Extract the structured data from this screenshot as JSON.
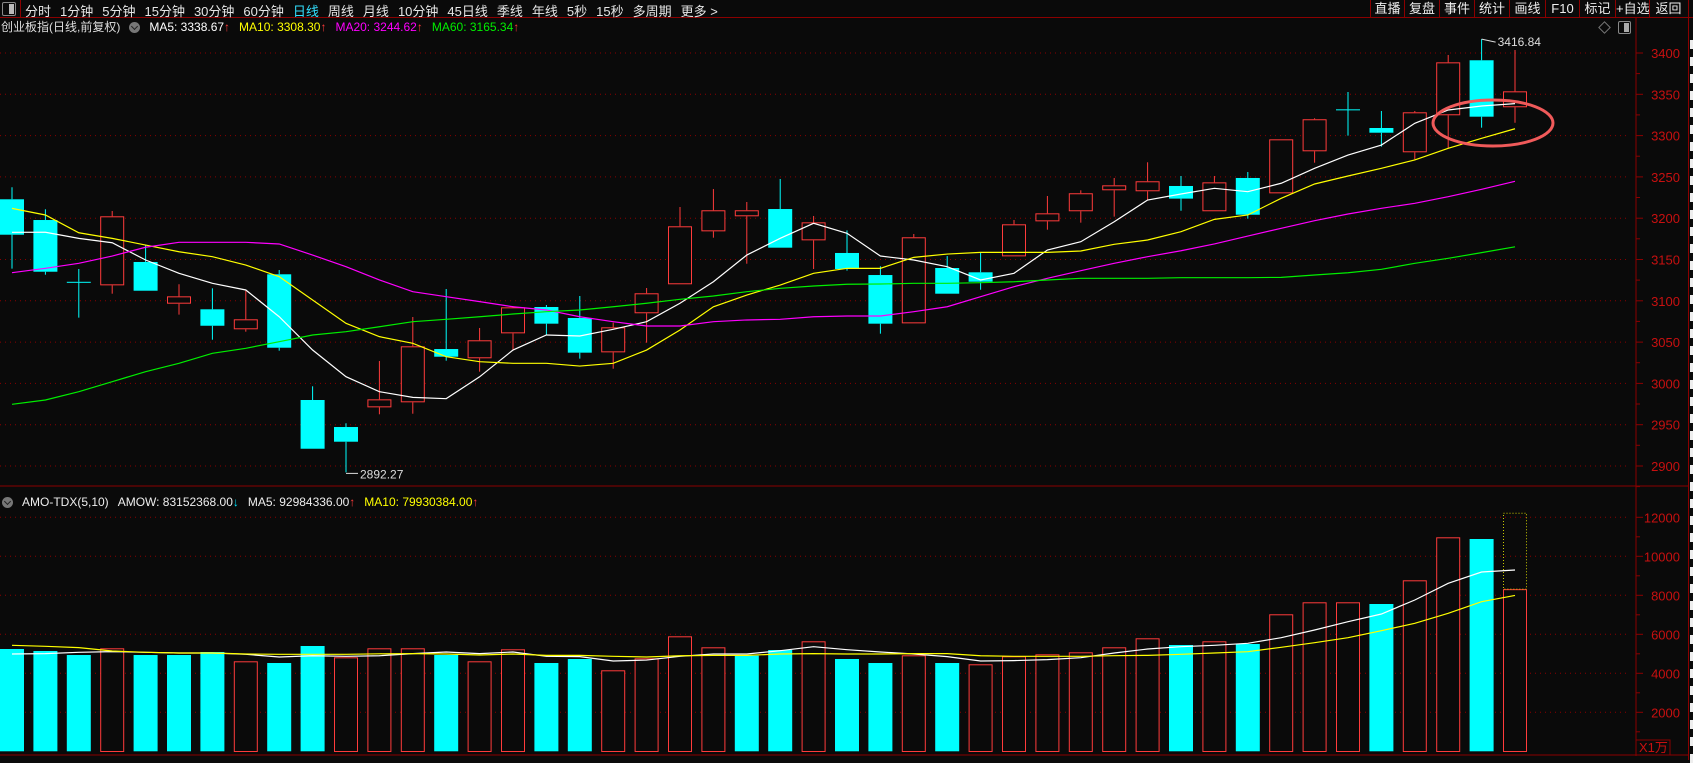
{
  "toolbar": {
    "tabs": [
      "分时",
      "1分钟",
      "5分钟",
      "15分钟",
      "30分钟",
      "60分钟",
      "日线",
      "周线",
      "月线",
      "10分钟",
      "45日线",
      "季线",
      "年线",
      "5秒",
      "15秒",
      "多周期",
      "更多 >"
    ],
    "active_tab": "日线",
    "right_buttons": [
      "直播",
      "复盘",
      "事件",
      "统计",
      "画线",
      "F10",
      "标记",
      "+自选",
      "返回"
    ]
  },
  "price_panel": {
    "title": "创业板指(日线,前复权)",
    "ma5_label": "MA5: 3338.67",
    "ma10_label": "MA10: 3308.30",
    "ma20_label": "MA20: 3244.62",
    "ma60_label": "MA60: 3165.34",
    "up_arrow": "↑",
    "high_label": "3416.84",
    "low_label": "2892.27",
    "y_ticks": [
      "3400",
      "3350",
      "3300",
      "3250",
      "3200",
      "3150",
      "3100",
      "3050",
      "3000",
      "2950",
      "2900"
    ]
  },
  "volume_panel": {
    "name": "AMO-TDX(5,10)",
    "amow_label": "AMOW: 83152368.00",
    "down_arrow": "↓",
    "up_arrow": "↑",
    "ma5_label": "MA5: 92984336.00",
    "ma10_label": "MA10: 79930384.00",
    "unit": "X1万",
    "y_ticks": [
      "12000",
      "10000",
      "8000",
      "6000",
      "4000",
      "2000"
    ]
  },
  "colors": {
    "up": "#ff3b3b",
    "down": "#00ffff",
    "ma5": "#ffffff",
    "ma10": "#ffff00",
    "ma20": "#ff00ff",
    "ma60": "#00ee00",
    "grid": "#8b0000",
    "axis_text": "#c81010",
    "annotation": "#f05a5a"
  },
  "chart_data": [
    {
      "type": "candlestick",
      "ylim": [
        2880,
        3420
      ],
      "grid": true,
      "ohlc": [
        [
          3222.9,
          3237.4,
          3138.9,
          3180.0
        ],
        [
          3197.8,
          3210.8,
          3131.6,
          3135.2
        ],
        [
          3123.0,
          3138.5,
          3079.6,
          3122.4
        ],
        [
          3118.7,
          3208.7,
          3108.6,
          3202.3
        ],
        [
          3147.0,
          3167.2,
          3112.2,
          3112.2
        ],
        [
          3096.5,
          3120.0,
          3083.2,
          3105.4
        ],
        [
          3089.7,
          3115.1,
          3052.9,
          3069.8
        ],
        [
          3065.5,
          3112.2,
          3062.6,
          3077.6
        ],
        [
          3132.1,
          3137.3,
          3039.6,
          3043.2
        ],
        [
          2979.9,
          2996.5,
          2920.9,
          2920.9
        ],
        [
          2947.2,
          2951.7,
          2892.27,
          2929.4
        ],
        [
          2971.0,
          3027.1,
          2962.6,
          2980.7
        ],
        [
          2977.1,
          3080.4,
          2963.3,
          3044.9
        ],
        [
          3041.6,
          3114.3,
          3027.5,
          3032.3
        ],
        [
          3030.4,
          3067.1,
          3014.2,
          3052.2
        ],
        [
          3060.6,
          3093.7,
          3040.4,
          3092.1
        ],
        [
          3092.5,
          3094.9,
          3058.3,
          3072.3
        ],
        [
          3079.2,
          3105.8,
          3030.0,
          3037.2
        ],
        [
          3037.6,
          3073.5,
          3017.8,
          3067.9
        ],
        [
          3084.9,
          3115.5,
          3049.3,
          3109.1
        ],
        [
          3120.0,
          3213.6,
          3120.0,
          3190.2
        ],
        [
          3184.1,
          3235.3,
          3176.4,
          3209.6
        ],
        [
          3202.3,
          3219.6,
          3144.9,
          3209.6
        ],
        [
          3211.1,
          3247.5,
          3164.3,
          3164.3
        ],
        [
          3173.2,
          3202.7,
          3138.5,
          3195.0
        ],
        [
          3157.9,
          3185.3,
          3136.5,
          3138.5
        ],
        [
          3131.2,
          3141.8,
          3060.2,
          3072.3
        ],
        [
          3072.7,
          3180.9,
          3072.7,
          3176.9
        ],
        [
          3139.7,
          3154.2,
          3108.6,
          3108.6
        ],
        [
          3134.5,
          3158.3,
          3113.4,
          3123.1
        ],
        [
          3153.8,
          3197.8,
          3153.8,
          3192.6
        ],
        [
          3196.2,
          3226.9,
          3186.1,
          3205.9
        ],
        [
          3208.4,
          3233.8,
          3194.6,
          3230.2
        ],
        [
          3233.8,
          3248.7,
          3201.9,
          3239.8
        ],
        [
          3232.6,
          3267.7,
          3222.0,
          3244.7
        ],
        [
          3239.0,
          3251.1,
          3209.0,
          3223.7
        ],
        [
          3208.4,
          3251.1,
          3208.4,
          3243.4
        ],
        [
          3248.7,
          3255.9,
          3199.4,
          3204.2
        ],
        [
          3230.1,
          3295.5,
          3230.1,
          3295.5
        ],
        [
          3281.0,
          3321.0,
          3267.2,
          3319.8
        ],
        [
          3331.8,
          3352.8,
          3299.9,
          3331.6
        ],
        [
          3309.2,
          3329.8,
          3286.6,
          3303.5
        ],
        [
          3279.8,
          3329.8,
          3271.3,
          3328.2
        ],
        [
          3324.6,
          3397.6,
          3284.2,
          3388.7
        ],
        [
          3391.2,
          3416.84,
          3309.6,
          3322.9
        ],
        [
          3334.3,
          3403.6,
          3315.6,
          3353.6
        ]
      ],
      "series": [
        {
          "name": "MA5",
          "values": [
            3182.9,
            3183,
            3175.6,
            3170.3,
            3149.4,
            3133.3,
            3121.2,
            3113.1,
            3080.7,
            3040.4,
            3008.1,
            2990,
            2983.1,
            2981.5,
            3008,
            3040.4,
            3058.6,
            3057.4,
            3065.5,
            3074.7,
            3097,
            3123.1,
            3155.4,
            3175.6,
            3193.8,
            3181.7,
            3154.2,
            3149.4,
            3141.3,
            3125.2,
            3133.3,
            3161.5,
            3171.5,
            3195.7,
            3222,
            3229.3,
            3236.2,
            3232.1,
            3242.3,
            3260.4,
            3276.5,
            3288.6,
            3314.9,
            3331,
            3335.8,
            3338.67
          ]
        },
        {
          "name": "MA10",
          "values": [
            3211.9,
            3203.9,
            3182.4,
            3175.6,
            3167.5,
            3159.4,
            3153.4,
            3143.3,
            3129.2,
            3101,
            3072.7,
            3056.6,
            3048.5,
            3032.3,
            3026.3,
            3024.3,
            3024.3,
            3021,
            3024.3,
            3040.4,
            3064.7,
            3092.8,
            3107,
            3119.1,
            3133.3,
            3139.3,
            3139.3,
            3152.6,
            3156.6,
            3158.6,
            3158.6,
            3158.6,
            3160.3,
            3168.4,
            3173.6,
            3183.7,
            3198.6,
            3203.9,
            3224.1,
            3241.4,
            3251.1,
            3260.4,
            3270.5,
            3284.6,
            3296.7,
            3308.3
          ]
        },
        {
          "name": "MA20",
          "values": [
            3134,
            3139.3,
            3145.4,
            3154.2,
            3164.8,
            3170.8,
            3170.8,
            3170.8,
            3168.8,
            3155.4,
            3141.3,
            3125.2,
            3111,
            3105,
            3099,
            3092.8,
            3088.9,
            3080.7,
            3074.7,
            3069.5,
            3069.5,
            3074.7,
            3076.8,
            3077.6,
            3080.7,
            3081.6,
            3081.6,
            3086.8,
            3092.8,
            3105,
            3117.1,
            3127.2,
            3136.5,
            3145.4,
            3153.4,
            3160.6,
            3168.8,
            3178.4,
            3187.8,
            3197,
            3205.1,
            3212,
            3218,
            3226,
            3235,
            3244.62
          ]
        },
        {
          "name": "MA60",
          "values": [
            2974.7,
            2979.9,
            2990,
            3002.1,
            3014.2,
            3024.3,
            3036.4,
            3042.5,
            3050.5,
            3058.6,
            3062.6,
            3068.6,
            3074.7,
            3077.6,
            3080.7,
            3084,
            3086.8,
            3088.9,
            3092.8,
            3097,
            3101.8,
            3105.8,
            3111,
            3115.1,
            3117.9,
            3120,
            3120.3,
            3121.2,
            3121.2,
            3121.9,
            3123.1,
            3125.2,
            3127.2,
            3127.2,
            3127.2,
            3128,
            3128,
            3128,
            3128.4,
            3131.2,
            3134,
            3138.1,
            3145.4,
            3151.4,
            3158.3,
            3165.34
          ]
        }
      ],
      "annotation": "red ellipse around last three candles"
    },
    {
      "type": "bar",
      "unit": "X1万",
      "ylim": [
        0,
        12500
      ],
      "grid": true,
      "values": [
        5246,
        5144,
        4938,
        5282,
        4938,
        4938,
        5092,
        4615,
        4528,
        5400,
        4820,
        5282,
        5282,
        4938,
        4615,
        5231,
        4528,
        4733,
        4154,
        4769,
        5897,
        5333,
        4903,
        5195,
        5641,
        4733,
        4528,
        4923,
        4528,
        4462,
        4872,
        4974,
        5077,
        5333,
        5795,
        5451,
        5641,
        5503,
        7026,
        7641,
        7641,
        7554,
        8769,
        10974,
        10887,
        8315
      ],
      "directions": [
        "d",
        "d",
        "d",
        "u",
        "d",
        "d",
        "d",
        "u",
        "d",
        "d",
        "u",
        "u",
        "u",
        "d",
        "u",
        "u",
        "d",
        "d",
        "u",
        "u",
        "u",
        "u",
        "d",
        "d",
        "u",
        "d",
        "d",
        "u",
        "d",
        "u",
        "u",
        "u",
        "u",
        "u",
        "u",
        "d",
        "u",
        "d",
        "u",
        "u",
        "u",
        "d",
        "u",
        "u",
        "d",
        "u"
      ],
      "forecast_last": 12205,
      "series": [
        {
          "name": "MA5",
          "values": [
            4990,
            5010,
            5077,
            5110,
            5077,
            5040,
            5040,
            4974,
            4836,
            4900,
            4870,
            4900,
            5010,
            5092,
            5010,
            5092,
            4870,
            4856,
            4630,
            4680,
            4870,
            4990,
            4990,
            5160,
            5364,
            5210,
            5092,
            4990,
            4856,
            4630,
            4650,
            4700,
            4800,
            5041,
            5246,
            5364,
            5436,
            5538,
            5826,
            6220,
            6646,
            7041,
            7759,
            8615,
            9195,
            9298
          ]
        },
        {
          "name": "MA10",
          "values": [
            5436,
            5385,
            5316,
            5144,
            5077,
            5040,
            5040,
            4990,
            4974,
            4974,
            4974,
            5000,
            5010,
            4990,
            4938,
            4990,
            4920,
            4920,
            4870,
            4836,
            4900,
            4920,
            4920,
            4990,
            5010,
            4990,
            4990,
            5010,
            5010,
            4900,
            4870,
            4870,
            4870,
            4903,
            4920,
            4974,
            5041,
            5108,
            5333,
            5569,
            5826,
            6185,
            6564,
            7077,
            7672,
            7993
          ]
        }
      ]
    }
  ]
}
